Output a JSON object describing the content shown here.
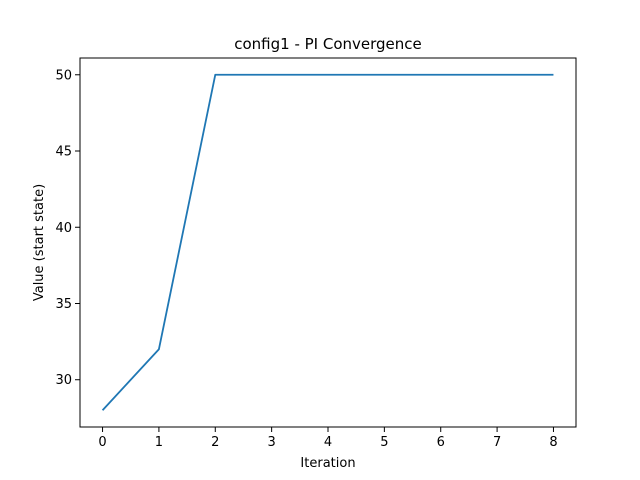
{
  "chart_data": {
    "type": "line",
    "title": "config1 - PI Convergence",
    "xlabel": "Iteration",
    "ylabel": "Value (start state)",
    "xlim": [
      -0.4,
      8.4
    ],
    "ylim": [
      26.9,
      51.1
    ],
    "xticks": [
      0,
      1,
      2,
      3,
      4,
      5,
      6,
      7,
      8
    ],
    "yticks": [
      30,
      35,
      40,
      45,
      50
    ],
    "grid": false,
    "series": [
      {
        "color": "#1f77b4",
        "x": [
          0,
          1,
          2,
          3,
          4,
          5,
          6,
          7,
          8
        ],
        "y": [
          28,
          32,
          50,
          50,
          50,
          50,
          50,
          50,
          50
        ]
      }
    ]
  }
}
